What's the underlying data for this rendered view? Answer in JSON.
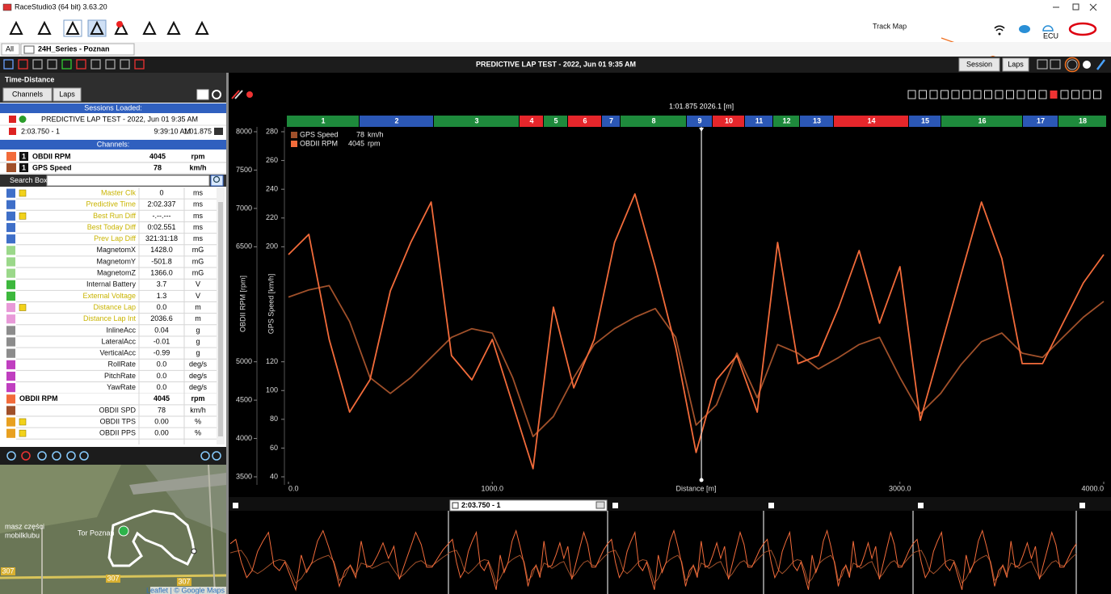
{
  "window": {
    "title": "RaceStudio3 (64 bit) 3.63.20"
  },
  "annotation": "Track Map",
  "tabs": [
    "All",
    "24H_Series - Poznan"
  ],
  "header": {
    "title": "PREDICTIVE LAP TEST - 2022, Jun 01 9:35 AM",
    "buttons": [
      "Session",
      "Laps"
    ]
  },
  "panel": {
    "title": "Time-Distance",
    "buttons": [
      "Channels",
      "Laps"
    ],
    "sessions_header": "Sessions Loaded:",
    "session": "PREDICTIVE LAP TEST - 2022, Jun 01 9:35 AM",
    "lap": {
      "name": "2:03.750 - 1",
      "time": "9:39:10 AM",
      "lap_time": "1:01.875"
    },
    "channels_header": "Channels:",
    "selected": [
      {
        "index": "1",
        "name": "OBDII RPM",
        "value": "4045",
        "unit": "rpm",
        "color": "#f26b3a"
      },
      {
        "index": "1",
        "name": "GPS Speed",
        "value": "78",
        "unit": "km/h",
        "color": "#a0502a"
      }
    ],
    "search": "Search Box",
    "channels": [
      {
        "name": "Master Clk",
        "value": "0",
        "unit": "ms",
        "color": "#3f6fc8",
        "text_color": "#c9b400",
        "note": true
      },
      {
        "name": "Predictive Time",
        "value": "2:02.337",
        "unit": "ms",
        "color": "#3f6fc8",
        "text_color": "#c9b400"
      },
      {
        "name": "Best Run Diff",
        "value": "-.--.---",
        "unit": "ms",
        "color": "#3f6fc8",
        "text_color": "#c9b400",
        "note": true
      },
      {
        "name": "Best Today Diff",
        "value": "0:02.551",
        "unit": "ms",
        "color": "#3f6fc8",
        "text_color": "#c9b400"
      },
      {
        "name": "Prev Lap Diff",
        "value": "321:31:18",
        "unit": "ms",
        "color": "#3f6fc8",
        "text_color": "#c9b400"
      },
      {
        "name": "MagnetomX",
        "value": "1428.0",
        "unit": "mG",
        "color": "#9bd88a"
      },
      {
        "name": "MagnetomY",
        "value": "-501.8",
        "unit": "mG",
        "color": "#9bd88a"
      },
      {
        "name": "MagnetomZ",
        "value": "1366.0",
        "unit": "mG",
        "color": "#9bd88a"
      },
      {
        "name": "Internal Battery",
        "value": "3.7",
        "unit": "V",
        "color": "#3db83d"
      },
      {
        "name": "External Voltage",
        "value": "1.3",
        "unit": "V",
        "color": "#3db83d",
        "text_color": "#c9b400"
      },
      {
        "name": "Distance Lap",
        "value": "0.0",
        "unit": "m",
        "color": "#e89ad8",
        "text_color": "#c9b400",
        "note": true
      },
      {
        "name": "Distance Lap Int",
        "value": "2036.6",
        "unit": "m",
        "color": "#e89ad8",
        "text_color": "#c9b400"
      },
      {
        "name": "InlineAcc",
        "value": "0.04",
        "unit": "g",
        "color": "#8c8c8c"
      },
      {
        "name": "LateralAcc",
        "value": "-0.01",
        "unit": "g",
        "color": "#8c8c8c"
      },
      {
        "name": "VerticalAcc",
        "value": "-0.99",
        "unit": "g",
        "color": "#8c8c8c"
      },
      {
        "name": "RollRate",
        "value": "0.0",
        "unit": "deg/s",
        "color": "#c03fc0"
      },
      {
        "name": "PitchRate",
        "value": "0.0",
        "unit": "deg/s",
        "color": "#c03fc0"
      },
      {
        "name": "YawRate",
        "value": "0.0",
        "unit": "deg/s",
        "color": "#c03fc0"
      },
      {
        "name": "OBDII RPM",
        "value": "4045",
        "unit": "rpm",
        "color": "#f26b3a",
        "group": true
      },
      {
        "name": "OBDII SPD",
        "value": "78",
        "unit": "km/h",
        "color": "#a0502a"
      },
      {
        "name": "OBDII TPS",
        "value": "0.00",
        "unit": "%",
        "color": "#e8a020",
        "note": true
      },
      {
        "name": "OBDII PPS",
        "value": "0.00",
        "unit": "%",
        "color": "#e8a020",
        "note": true
      }
    ]
  },
  "map": {
    "labels": [
      "masz części",
      "mobilklubu",
      "Tor Poznań",
      "307",
      "307",
      "307"
    ],
    "attribution": "Leaflet | © Google Maps"
  },
  "chart_data": {
    "type": "line",
    "cursor": {
      "value": 2026.1,
      "label": "1:01.875  2026.1 [m]"
    },
    "sectors": [
      "1",
      "2",
      "3",
      "4",
      "5",
      "6",
      "7",
      "8",
      "9",
      "10",
      "11",
      "12",
      "13",
      "14",
      "15",
      "16",
      "17",
      "18"
    ],
    "sector_colors": [
      "#1e8a3c",
      "#2b57b5",
      "#1e8a3c",
      "#e5262b",
      "#1e8a3c",
      "#e5262b",
      "#2b57b5",
      "#1e8a3c",
      "#2b57b5",
      "#e5262b",
      "#2b57b5",
      "#1e8a3c",
      "#2b57b5",
      "#e5262b",
      "#2b57b5",
      "#1e8a3c",
      "#2b57b5",
      "#1e8a3c"
    ],
    "xlabel": "Distance [m]",
    "ylabel": "GPS Speed [km/h]",
    "y2label": "OBDII RPM [rpm]",
    "x": [
      0,
      100,
      200,
      300,
      400,
      500,
      600,
      700,
      800,
      900,
      1000,
      1100,
      1200,
      1300,
      1400,
      1500,
      1600,
      1700,
      1800,
      1900,
      2000,
      2100,
      2200,
      2300,
      2400,
      2500,
      2600,
      2700,
      2800,
      2900,
      3000,
      3100,
      3200,
      3300,
      3400,
      3500,
      3600,
      3700,
      3800,
      3900,
      4000
    ],
    "xlim": [
      0,
      4000
    ],
    "xticks": [
      {
        "value": 0,
        "label": "0.0"
      },
      {
        "value": 1000,
        "label": "1000.0"
      },
      {
        "value": 3000,
        "label": "3000.0"
      },
      {
        "value": 4000,
        "label": "4000.0"
      }
    ],
    "ylim": [
      40,
      280
    ],
    "yticks": [
      40,
      60,
      80,
      100,
      120,
      200,
      220,
      240,
      260,
      280
    ],
    "y2lim": [
      3500,
      8000
    ],
    "y2ticks": [
      3500,
      4000,
      4500,
      5000,
      6500,
      7000,
      7500,
      8000
    ],
    "series": [
      {
        "name": "GPS Speed",
        "legend_value": "78",
        "unit": "km/h",
        "color": "#a0502a",
        "values": [
          165,
          170,
          173,
          148,
          109,
          98,
          109,
          123,
          137,
          143,
          140,
          109,
          68,
          82,
          109,
          132,
          143,
          151,
          157,
          137,
          76,
          90,
          126,
          95,
          132,
          126,
          115,
          123,
          132,
          137,
          109,
          84,
          98,
          118,
          134,
          140,
          126,
          123,
          137,
          151,
          162
        ]
      },
      {
        "name": "OBDII RPM",
        "legend_value": "4045",
        "unit": "rpm",
        "color": "#f26b3a",
        "axis": "y2",
        "values": [
          6398,
          6662,
          5292,
          4344,
          4765,
          5924,
          6556,
          7083,
          5081,
          4765,
          5292,
          4449,
          3606,
          5713,
          4660,
          5292,
          6556,
          7189,
          6240,
          5186,
          3817,
          4765,
          5081,
          4344,
          6556,
          4976,
          5081,
          5713,
          6451,
          5503,
          6240,
          4238,
          5186,
          6135,
          7083,
          6346,
          4976,
          4976,
          5503,
          6029,
          6398
        ]
      }
    ],
    "overview_label": "2:03.750 - 1"
  }
}
